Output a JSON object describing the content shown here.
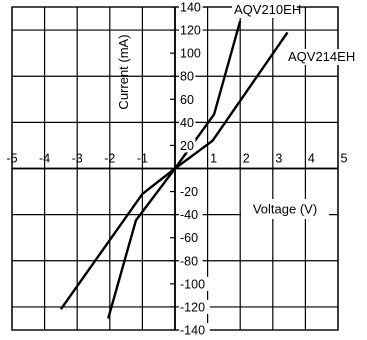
{
  "chart_data": {
    "type": "line",
    "title": "",
    "xlabel": "Voltage (V)",
    "ylabel": "Current (mA)",
    "xlim": [
      -5,
      5
    ],
    "ylim": [
      -140,
      140
    ],
    "grid": true,
    "x_ticks": [
      -5,
      -4,
      -3,
      -2,
      -1,
      0,
      1,
      2,
      3,
      4,
      5
    ],
    "x_tick_labels": [
      "-5",
      "-4",
      "-3",
      "-2",
      "-1",
      "",
      "1",
      "2",
      "3",
      "4",
      "5"
    ],
    "y_ticks": [
      140,
      120,
      100,
      80,
      60,
      40,
      20,
      0,
      -20,
      -40,
      -60,
      -80,
      -100,
      -120,
      -140
    ],
    "y_tick_labels": [
      "140",
      "120",
      "100",
      "80",
      "60",
      "40",
      "20",
      "",
      "-20",
      "-40",
      "-60",
      "-80",
      "-100",
      "-120",
      "-140"
    ],
    "series": [
      {
        "name": "AQV210EH",
        "color": "#000000",
        "points": [
          [
            -2.05,
            -130
          ],
          [
            -1.2,
            -45
          ],
          [
            0,
            0
          ],
          [
            1.2,
            47
          ],
          [
            2.0,
            128
          ]
        ]
      },
      {
        "name": "AQV214EH",
        "color": "#000000",
        "points": [
          [
            -3.5,
            -122
          ],
          [
            -1.0,
            -22
          ],
          [
            0,
            0
          ],
          [
            1.15,
            24
          ],
          [
            3.45,
            118
          ]
        ]
      }
    ]
  }
}
